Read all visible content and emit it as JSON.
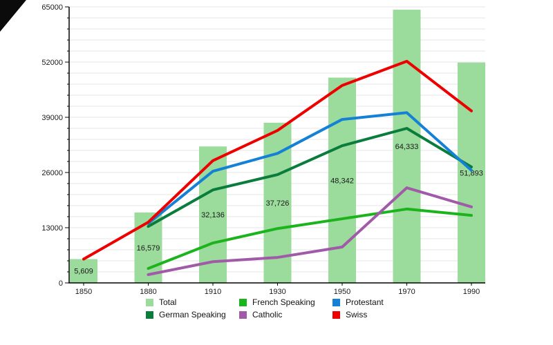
{
  "chart_data": {
    "type": "bar+line combo",
    "title": "",
    "xlabel": "",
    "ylabel": "",
    "categories": [
      "1850",
      "1880",
      "1910",
      "1930",
      "1950",
      "1970",
      "1990"
    ],
    "ylim": [
      0,
      65000
    ],
    "y_major_ticks": [
      0,
      13000,
      26000,
      39000,
      52000,
      65000
    ],
    "y_tick_labels": [
      "0",
      "13000",
      "26000",
      "39000",
      "52000",
      "65000"
    ],
    "y_minor_step": 2600,
    "grid": "horizontal, light gray",
    "legend_position": "bottom, 3 columns x 2 rows",
    "bars": {
      "name": "Total",
      "color": "#9bdb9b",
      "values": [
        5609,
        16579,
        32136,
        37726,
        48342,
        64333,
        51893
      ],
      "value_labels": [
        "5,609",
        "16,579",
        "32,136",
        "37,726",
        "48,342",
        "64,333",
        "51,893"
      ]
    },
    "series": [
      {
        "name": "French Speaking",
        "color": "#1cb41c",
        "values": [
          null,
          3400,
          9400,
          12800,
          15100,
          17400,
          15900
        ]
      },
      {
        "name": "German Speaking",
        "color": "#0a7c3c",
        "values": [
          null,
          13300,
          21900,
          25500,
          32300,
          36400,
          27300
        ]
      },
      {
        "name": "Catholic",
        "color": "#a05aa8",
        "values": [
          null,
          1950,
          5000,
          6000,
          8450,
          22400,
          17900
        ]
      },
      {
        "name": "Protestant",
        "color": "#1581d6",
        "values": [
          null,
          14000,
          26300,
          30500,
          38500,
          40100,
          26500
        ]
      },
      {
        "name": "Swiss",
        "color": "#ee0000",
        "values": [
          5609,
          14300,
          28800,
          35900,
          46500,
          52200,
          40500
        ]
      }
    ],
    "legend": [
      {
        "label": "Total",
        "color": "#9bdb9b"
      },
      {
        "label": "French Speaking",
        "color": "#1cb41c"
      },
      {
        "label": "Protestant",
        "color": "#1581d6"
      },
      {
        "label": "German Speaking",
        "color": "#0a7c3c"
      },
      {
        "label": "Catholic",
        "color": "#a05aa8"
      },
      {
        "label": "Swiss",
        "color": "#ee0000"
      }
    ],
    "colors": {
      "axis": "#000000",
      "gridline": "#e6e6e6",
      "text": "#1a1a1a"
    }
  }
}
